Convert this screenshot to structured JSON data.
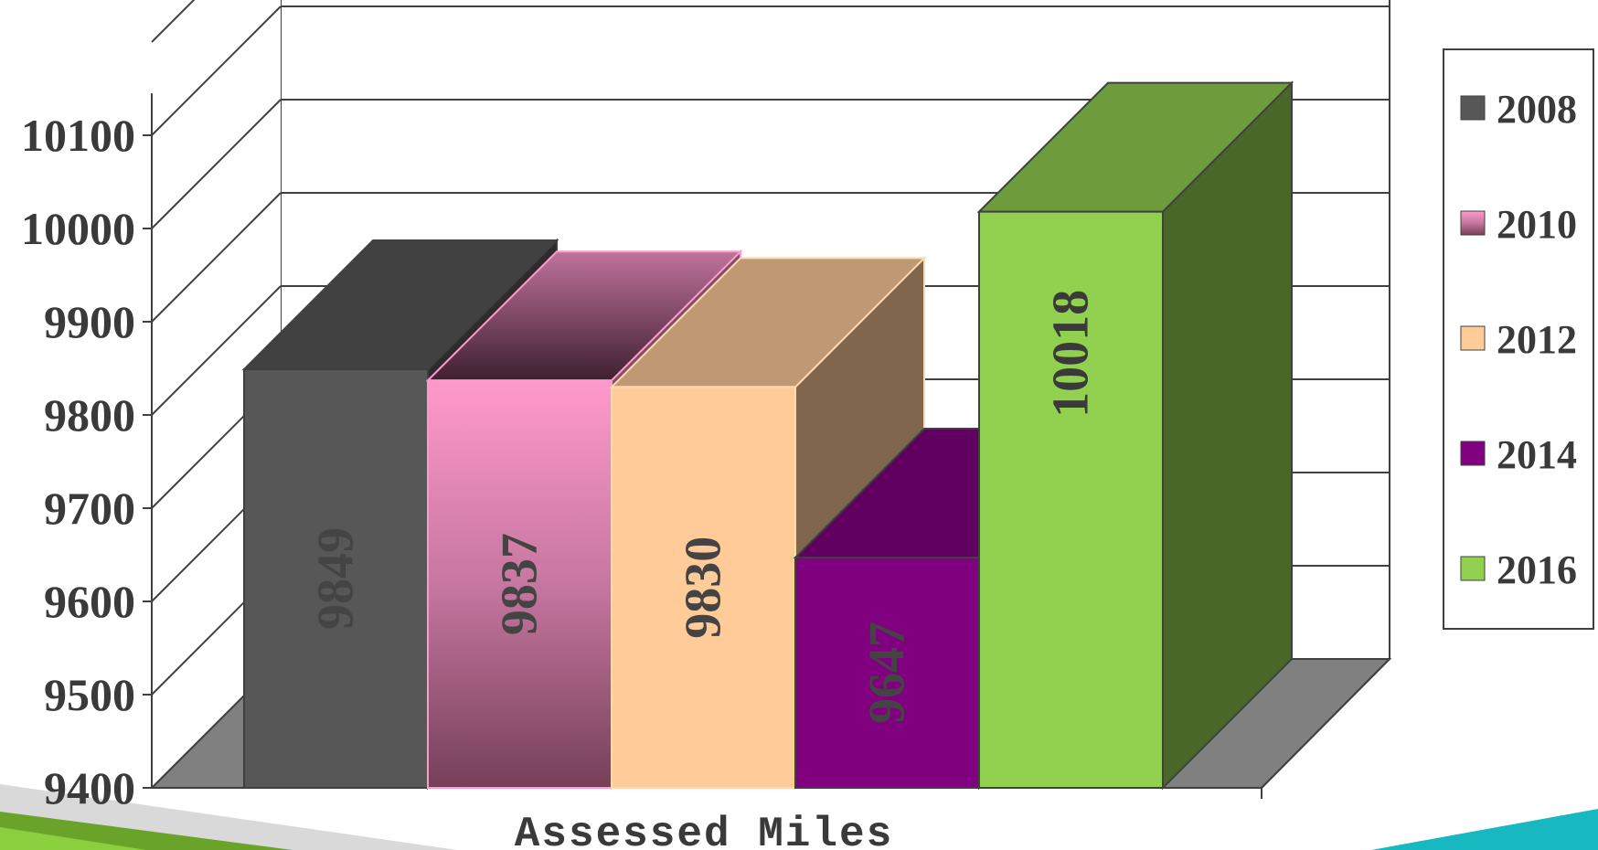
{
  "chart_data": {
    "type": "bar",
    "title": "",
    "xlabel": "Assessed Miles",
    "ylabel": "",
    "ylim": [
      9400,
      10200
    ],
    "yticks": [
      "9400",
      "9500",
      "9600",
      "9700",
      "9800",
      "9900",
      "10000",
      "10100"
    ],
    "grid": true,
    "legend_position": "right",
    "series": [
      {
        "name": "2008",
        "values": [
          9849
        ],
        "label": "9849",
        "color": "#575757"
      },
      {
        "name": "2010",
        "values": [
          9837
        ],
        "label": "9837",
        "color": "#ff99cc"
      },
      {
        "name": "2012",
        "values": [
          9830
        ],
        "label": "9830",
        "color": "#ffcc99"
      },
      {
        "name": "2014",
        "values": [
          9647
        ],
        "label": "9647",
        "color": "#800080"
      },
      {
        "name": "2016",
        "values": [
          10018
        ],
        "label": "10018",
        "color": "#92d050"
      }
    ]
  },
  "colors": {
    "floor": "#808080",
    "gridline": "#404040",
    "label_text": "#3a3a3a",
    "ribbon_green": "#6aa32a",
    "ribbon_gray": "#d9d9d9",
    "ribbon_teal": "#17b8c0"
  }
}
